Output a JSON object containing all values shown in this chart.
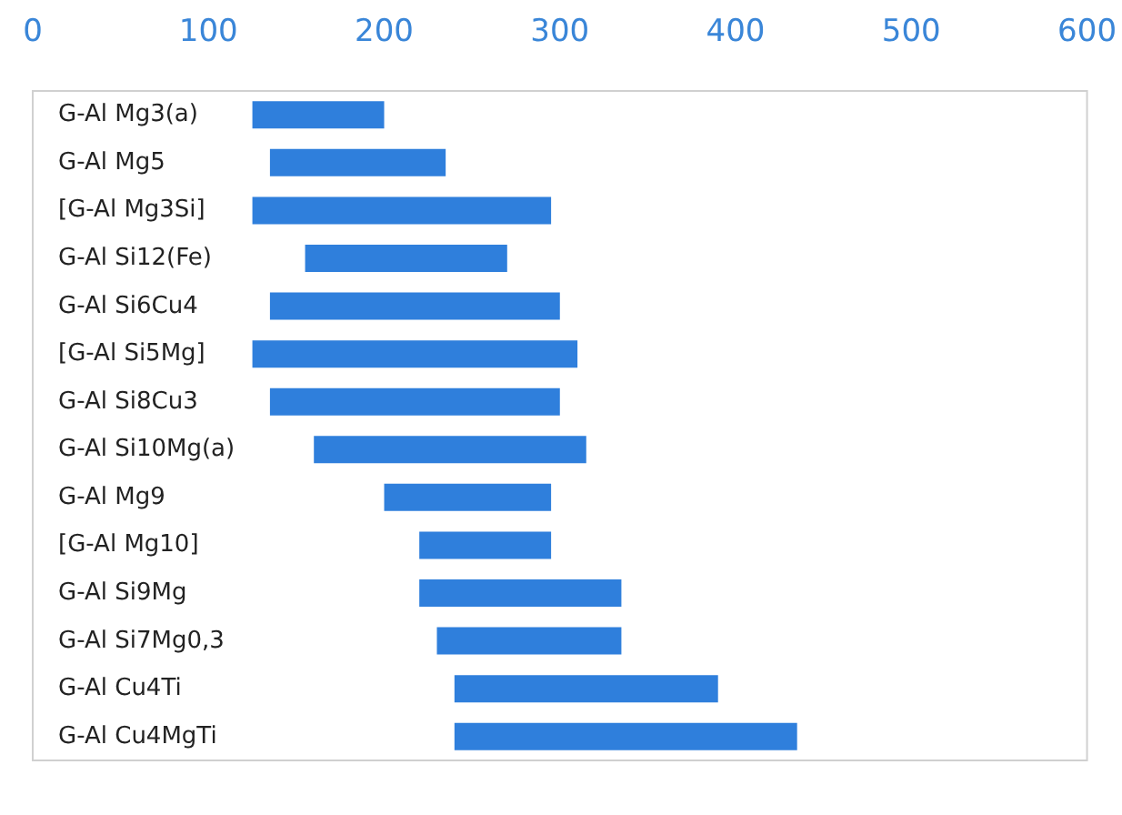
{
  "chart_data": {
    "type": "bar",
    "orientation": "horizontal",
    "categories": [
      "G-Al Mg3(a)",
      "G-Al Mg5",
      "[G-Al Mg3Si]",
      "G-Al Si12(Fe)",
      "G-Al Si6Cu4",
      "[G-Al Si5Mg]",
      "G-Al Si8Cu3",
      "G-Al Si10Mg(a)",
      "G-Al Mg9",
      "[G-Al Mg10]",
      "G-Al Si9Mg",
      "G-Al Si7Mg0,3",
      "G-Al Cu4Ti",
      "G-Al Cu4MgTi"
    ],
    "base": [
      125,
      135,
      125,
      155,
      135,
      125,
      135,
      160,
      200,
      220,
      220,
      230,
      240,
      240
    ],
    "values": [
      75,
      100,
      170,
      115,
      165,
      185,
      165,
      155,
      95,
      75,
      115,
      105,
      150,
      195
    ],
    "color": "#2f7fdc",
    "xlim": [
      0,
      600
    ],
    "xticks": [
      0,
      100,
      200,
      300,
      400,
      500,
      600
    ],
    "grid": false
  }
}
